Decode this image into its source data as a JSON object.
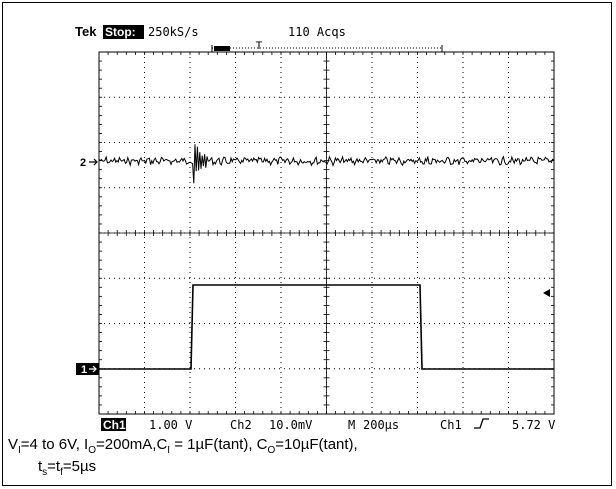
{
  "header": {
    "brand": "Tek",
    "mode_badge": "Stop:",
    "sample_rate": "250kS/s",
    "acquisitions": "110 Acqs",
    "trigger_marker": "T"
  },
  "channels": {
    "ch2_marker": "2",
    "ch1_marker": "1"
  },
  "footer": {
    "ch1_badge": "Ch1",
    "ch1_scale": "1.00 V",
    "ch2_label": "Ch2",
    "ch2_scale": "10.0mV",
    "timebase_label": "M",
    "timebase_value": "200µs",
    "trigger_source": "Ch1",
    "trigger_slope_icon": "rising-edge-icon",
    "trigger_level": "5.72 V"
  },
  "caption": {
    "line1_parts": [
      {
        "t": "V"
      },
      {
        "s": "I"
      },
      {
        "t": "=4 to 6V, I"
      },
      {
        "s": "O"
      },
      {
        "t": "=200mA,C"
      },
      {
        "s": "I"
      },
      {
        "t": " = 1µF(tant), C"
      },
      {
        "s": "O"
      },
      {
        "t": "=10µF(tant),"
      }
    ],
    "line2_parts": [
      {
        "t": "t"
      },
      {
        "s": "s"
      },
      {
        "t": "=t"
      },
      {
        "s": "f"
      },
      {
        "t": "=5µs"
      }
    ]
  },
  "colors": {
    "trace": "#000000",
    "grid": "#000000",
    "background": "#ffffff"
  }
}
